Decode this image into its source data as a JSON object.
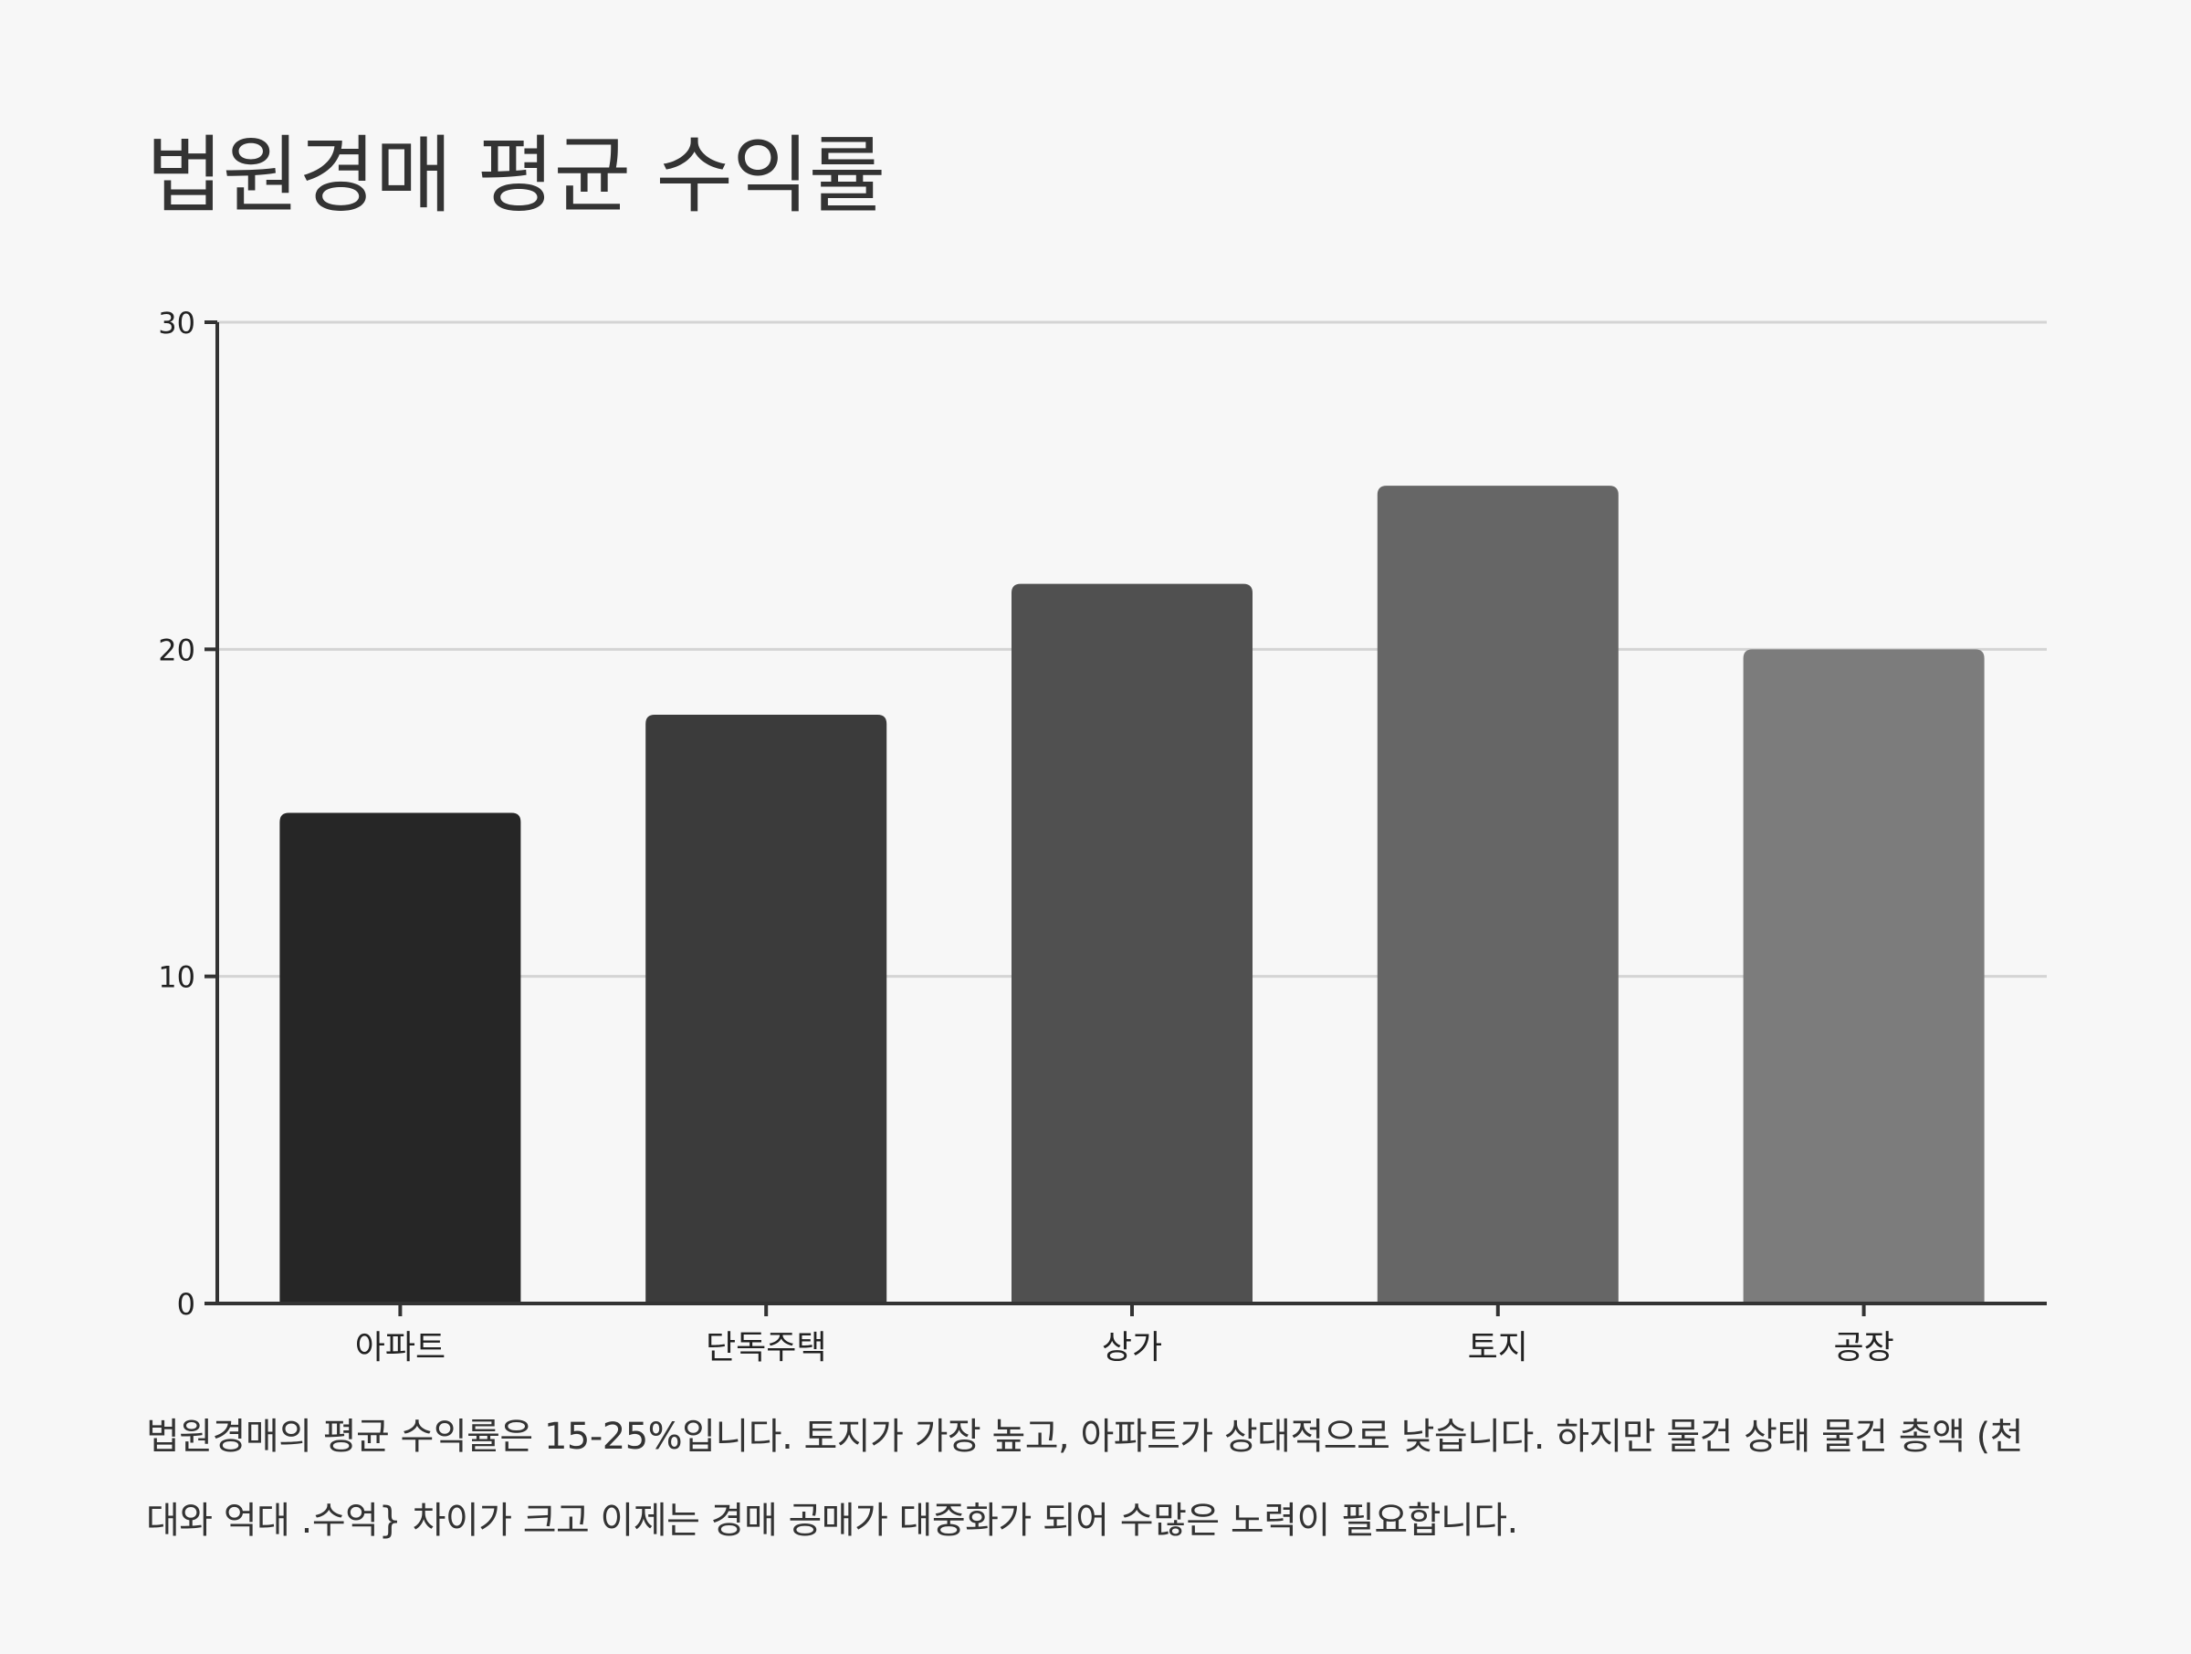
{
  "chart_data": {
    "type": "bar",
    "title": "법원경매 평균 수익률",
    "xlabel": "",
    "ylabel": "",
    "categories": [
      "아파트",
      "단독주택",
      "상가",
      "토지",
      "공장"
    ],
    "values": [
      15,
      18,
      22,
      25,
      20
    ],
    "colors": [
      "#262626",
      "#3b3b3b",
      "#505050",
      "#666666",
      "#7c7c7c"
    ],
    "ylim": [
      0,
      30
    ],
    "yticks": [
      0,
      10,
      20,
      30
    ],
    "grid": true,
    "legend": "none",
    "caption": "법원경매의 평균 수익률은 15-25%입니다. 토지가 가장 높고, 아파트가 상대적으로 낮습니다. 하지만 물건 상태 물건 총액 (천대와 억대 .수억} 차이가 크고 이제는 경매 공매가 대중화가 되어 수많은 노력이 필요합니다."
  }
}
